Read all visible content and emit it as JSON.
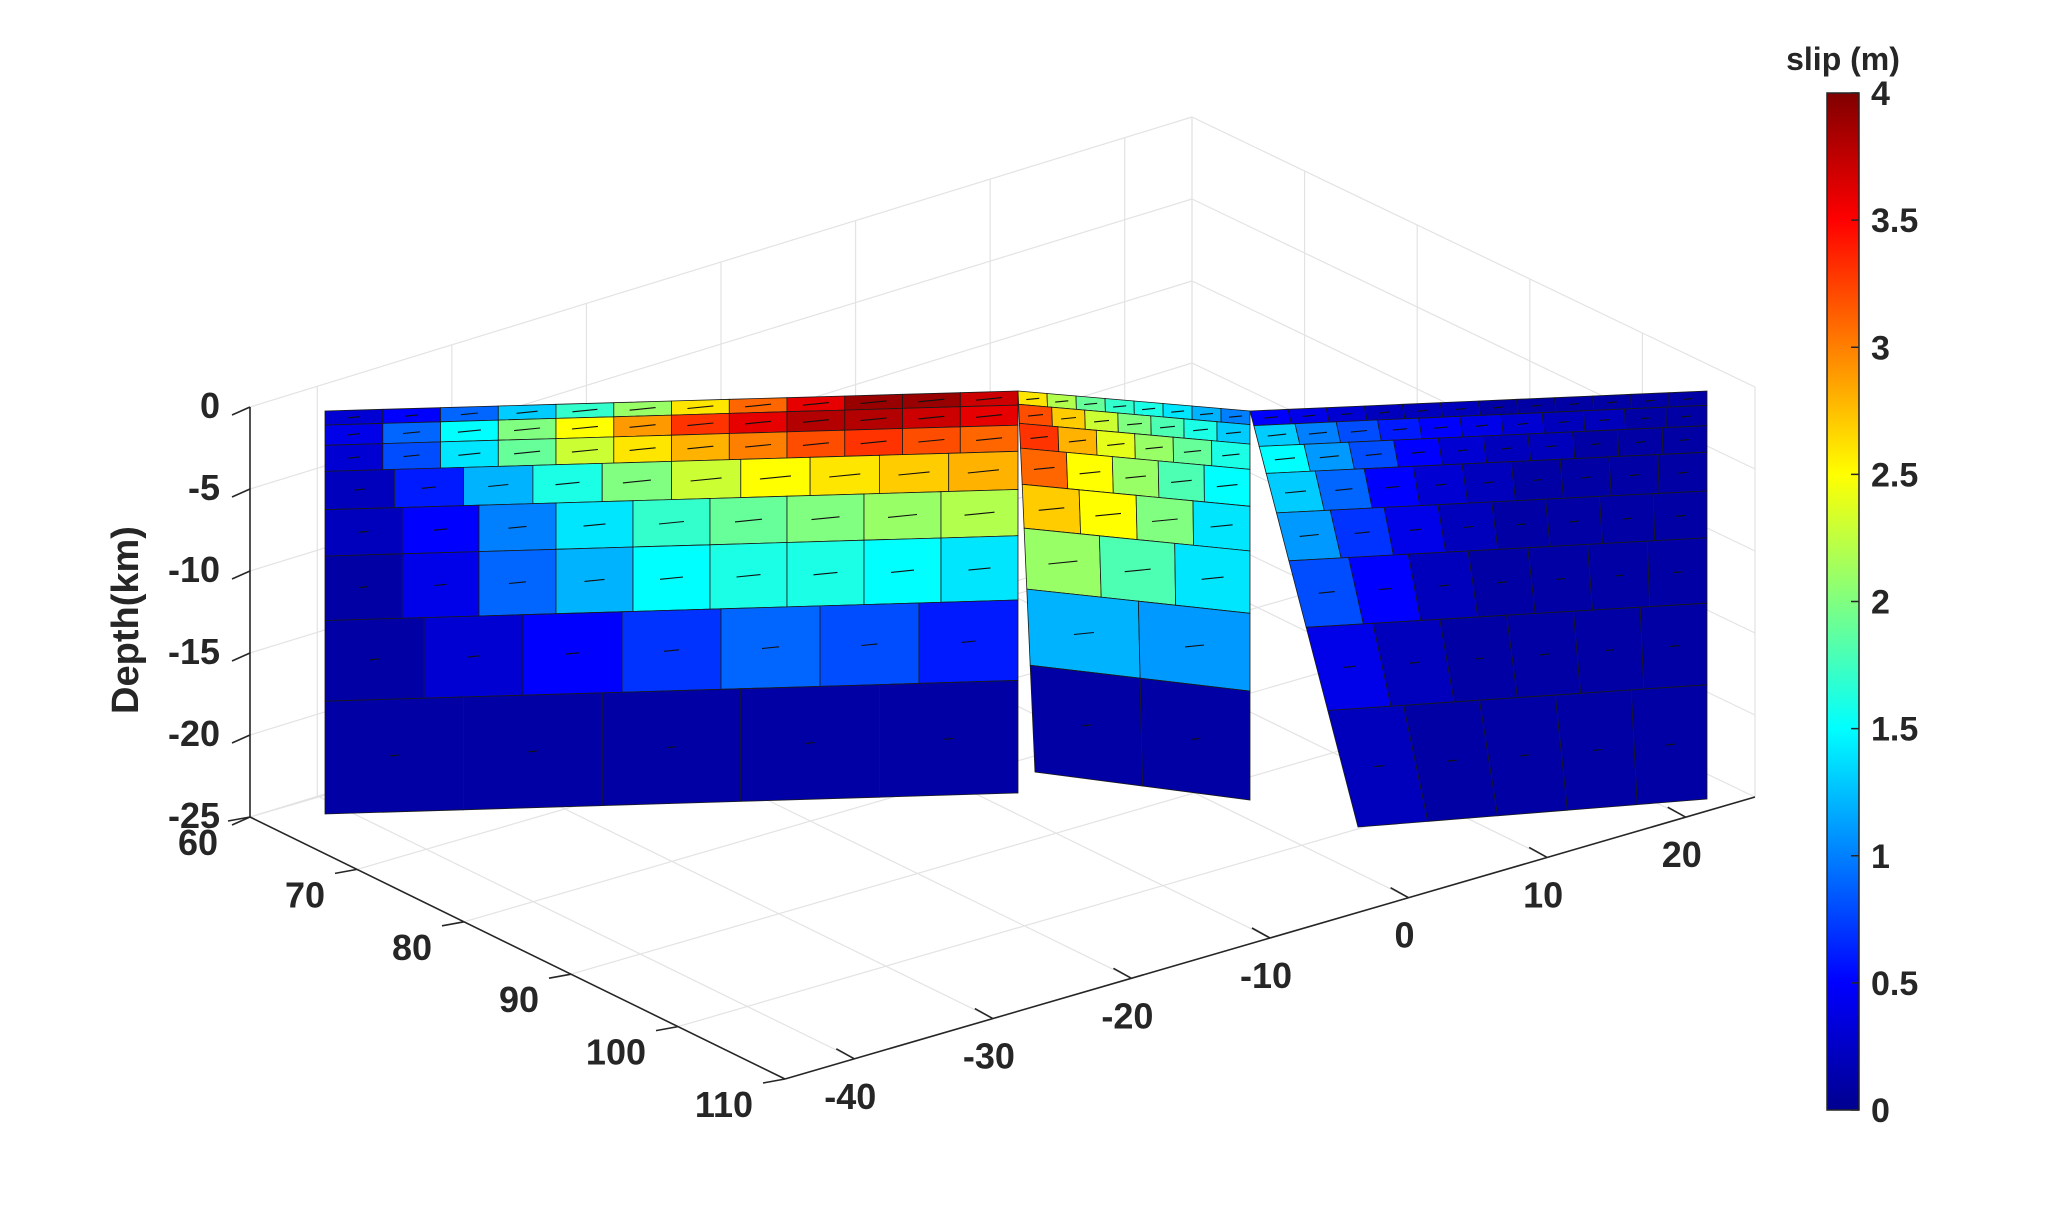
{
  "chart_data": {
    "type": "3d-fault-slip-surface",
    "zlabel": "Depth(km)",
    "colorbar_title": "slip (m)",
    "colormap": "jet",
    "colormap_stops": [
      "#00008f",
      "#0000ff",
      "#0080ff",
      "#00ffff",
      "#80ff80",
      "#ffff00",
      "#ff8000",
      "#ff0000",
      "#800000"
    ],
    "clim": [
      0,
      4
    ],
    "colorbar_ticks": [
      "0",
      "0.5",
      "1",
      "1.5",
      "2",
      "2.5",
      "3",
      "3.5",
      "4"
    ],
    "x_ticks": [
      "60",
      "70",
      "80",
      "90",
      "100",
      "110"
    ],
    "y_ticks": [
      "-40",
      "-30",
      "-20",
      "-10",
      "0",
      "10",
      "20"
    ],
    "z_ticks": [
      "0",
      "-5",
      "-10",
      "-15",
      "-20",
      "-25"
    ],
    "xlim": [
      60,
      110
    ],
    "ylim": [
      -45,
      25
    ],
    "zlim": [
      -25,
      0
    ],
    "grid": true,
    "segments": [
      {
        "name": "segment-1",
        "slip_rows": [
          [
            0.3,
            0.5,
            0.9,
            1.3,
            1.7,
            2.1,
            2.6,
            3.1,
            3.6,
            3.9,
            3.9,
            3.7
          ],
          [
            0.4,
            0.9,
            1.5,
            2.0,
            2.5,
            2.9,
            3.3,
            3.6,
            3.8,
            3.8,
            3.7,
            3.6
          ],
          [
            0.3,
            0.8,
            1.4,
            1.9,
            2.3,
            2.6,
            2.8,
            3.0,
            3.2,
            3.3,
            3.2,
            3.1
          ],
          [
            0.2,
            0.6,
            1.2,
            1.6,
            2.0,
            2.3,
            2.5,
            2.6,
            2.7,
            2.8
          ],
          [
            0.2,
            0.5,
            1.0,
            1.4,
            1.7,
            1.9,
            2.0,
            2.1,
            2.2
          ],
          [
            0.1,
            0.4,
            0.9,
            1.2,
            1.5,
            1.6,
            1.6,
            1.5,
            1.4
          ],
          [
            0.1,
            0.3,
            0.5,
            0.7,
            0.9,
            0.8,
            0.6
          ],
          [
            0.1,
            0.1,
            0.1,
            0.1,
            0.1
          ]
        ]
      },
      {
        "name": "segment-2",
        "slip_rows": [
          [
            2.6,
            2.2,
            1.9,
            1.7,
            1.6,
            1.4,
            1.2,
            1.0
          ],
          [
            3.2,
            2.7,
            2.3,
            2.0,
            1.8,
            1.6,
            1.3
          ],
          [
            3.3,
            2.8,
            2.4,
            2.1,
            1.9,
            1.6
          ],
          [
            3.1,
            2.5,
            2.1,
            1.8,
            1.5
          ],
          [
            2.7,
            2.5,
            2.0,
            1.4
          ],
          [
            2.1,
            1.8,
            1.4
          ],
          [
            1.2,
            1.1
          ],
          [
            0.1,
            0.1
          ]
        ]
      },
      {
        "name": "segment-3",
        "slip_rows": [
          [
            0.5,
            0.4,
            0.3,
            0.2,
            0.2,
            0.2,
            0.1,
            0.1,
            0.1,
            0.1,
            0.1,
            0.1
          ],
          [
            1.3,
            1.0,
            0.8,
            0.6,
            0.5,
            0.4,
            0.3,
            0.2,
            0.2,
            0.1,
            0.1
          ],
          [
            1.5,
            1.1,
            0.8,
            0.5,
            0.3,
            0.2,
            0.2,
            0.1,
            0.1,
            0.1
          ],
          [
            1.3,
            0.9,
            0.5,
            0.3,
            0.2,
            0.1,
            0.1,
            0.1,
            0.1
          ],
          [
            1.1,
            0.7,
            0.4,
            0.2,
            0.1,
            0.1,
            0.1,
            0.1
          ],
          [
            0.8,
            0.5,
            0.2,
            0.1,
            0.1,
            0.1,
            0.1
          ],
          [
            0.4,
            0.2,
            0.1,
            0.1,
            0.1,
            0.1
          ],
          [
            0.2,
            0.1,
            0.1,
            0.1,
            0.1
          ]
        ]
      }
    ]
  }
}
